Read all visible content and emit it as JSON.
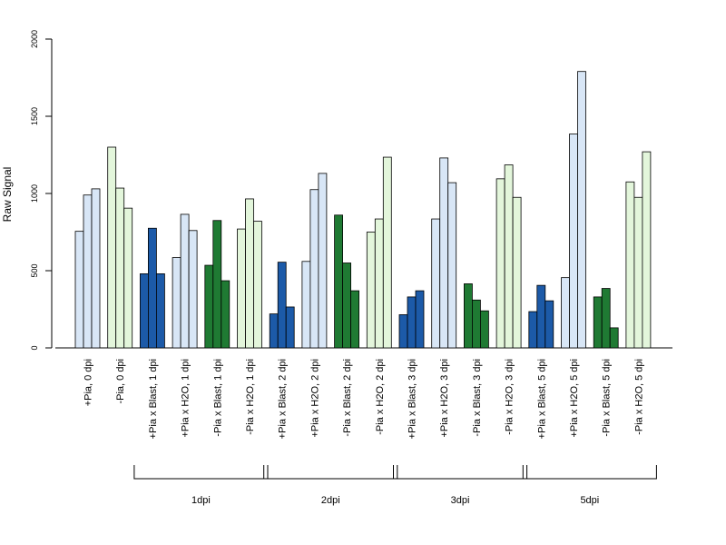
{
  "chart_data": {
    "type": "bar",
    "title": "",
    "xlabel": "",
    "ylabel": "Raw Signal",
    "ylim": [
      0,
      2000
    ],
    "yticks": [
      0,
      500,
      1000,
      1500,
      2000
    ],
    "grid": false,
    "legend": "none",
    "colors": {
      "light_blue": "#d8e6f6",
      "light_green": "#e3f6db",
      "dark_blue": "#1c5aa8",
      "dark_green": "#1f7a33"
    },
    "categories": [
      "+Pia, 0 dpi",
      "-Pia, 0 dpi",
      "+Pia x Blast, 1 dpi",
      "+Pia x H2O, 1 dpi",
      "-Pia x Blast, 1 dpi",
      "-Pia x H2O, 1 dpi",
      "+Pia x Blast, 2 dpi",
      "+Pia x H2O, 2 dpi",
      "-Pia x Blast, 2 dpi",
      "-Pia x H2O, 2 dpi",
      "+Pia x Blast, 3 dpi",
      "+Pia x H2O, 3 dpi",
      "-Pia x Blast, 3 dpi",
      "-Pia x H2O, 3 dpi",
      "+Pia x Blast, 5 dpi",
      "+Pia x H2O, 5 dpi",
      "-Pia x Blast, 5 dpi",
      "-Pia x H2O, 5 dpi"
    ],
    "category_colors": [
      "light_blue",
      "light_green",
      "dark_blue",
      "light_blue",
      "dark_green",
      "light_green",
      "dark_blue",
      "light_blue",
      "dark_green",
      "light_green",
      "dark_blue",
      "light_blue",
      "dark_green",
      "light_green",
      "dark_blue",
      "light_blue",
      "dark_green",
      "light_green"
    ],
    "values": [
      [
        755,
        990,
        1030
      ],
      [
        1300,
        1035,
        905
      ],
      [
        480,
        775,
        480
      ],
      [
        585,
        865,
        760
      ],
      [
        535,
        825,
        435
      ],
      [
        770,
        965,
        820
      ],
      [
        220,
        555,
        265
      ],
      [
        560,
        1025,
        1130
      ],
      [
        860,
        550,
        370
      ],
      [
        750,
        835,
        1235
      ],
      [
        215,
        330,
        370
      ],
      [
        835,
        1230,
        1070
      ],
      [
        415,
        310,
        240
      ],
      [
        1095,
        1185,
        975
      ],
      [
        235,
        405,
        305
      ],
      [
        455,
        1385,
        1790
      ],
      [
        330,
        385,
        130
      ],
      [
        1075,
        975,
        1270
      ]
    ],
    "groups": [
      {
        "label": "1dpi",
        "first": 2,
        "last": 5
      },
      {
        "label": "2dpi",
        "first": 6,
        "last": 9
      },
      {
        "label": "3dpi",
        "first": 10,
        "last": 13
      },
      {
        "label": "5dpi",
        "first": 14,
        "last": 17
      }
    ]
  }
}
